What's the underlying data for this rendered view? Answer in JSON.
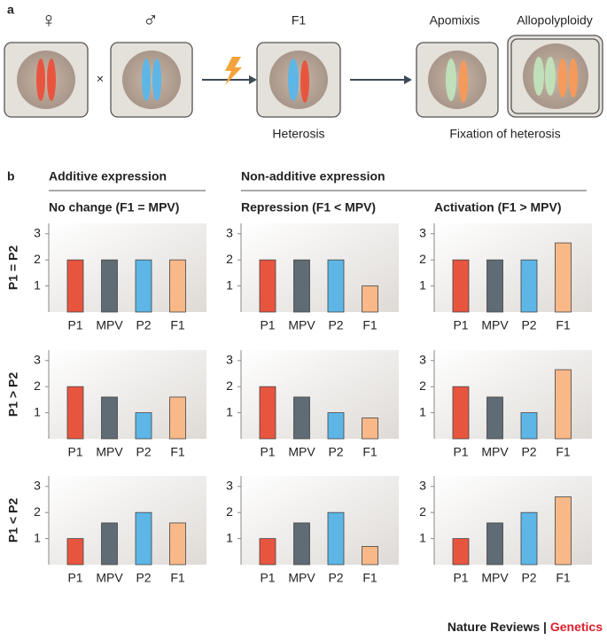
{
  "panel_a": {
    "label": "a",
    "female": "♀",
    "male": "♂",
    "cross": "×",
    "f1": "F1",
    "apomixis": "Apomixis",
    "allopolyploidy": "Allopolyploidy",
    "heterosis": "Heterosis",
    "fixation": "Fixation of heterosis"
  },
  "panel_b": {
    "label": "b",
    "additive": "Additive expression",
    "non_additive": "Non-additive expression",
    "columns": [
      "No change (F1 = MPV)",
      "Repression (F1 < MPV)",
      "Activation (F1 > MPV)"
    ],
    "rows": [
      "P1 = P2",
      "P1 > P2",
      "P1 < P2"
    ]
  },
  "footer": {
    "journal": "Nature Reviews",
    "separator": "|",
    "section": "Genetics"
  },
  "chart_data": [
    {
      "type": "bar",
      "categories": [
        "P1",
        "MPV",
        "P2",
        "F1"
      ],
      "values": [
        2,
        2,
        2,
        2
      ],
      "colors": [
        "#e8553f",
        "#5f6b75",
        "#5db6e6",
        "#f8b888"
      ],
      "ylim": [
        0,
        3.4
      ],
      "yticks": [
        1,
        2,
        3
      ]
    },
    {
      "type": "bar",
      "categories": [
        "P1",
        "MPV",
        "P2",
        "F1"
      ],
      "values": [
        2,
        2,
        2,
        1
      ],
      "colors": [
        "#e8553f",
        "#5f6b75",
        "#5db6e6",
        "#f8b888"
      ],
      "ylim": [
        0,
        3.4
      ],
      "yticks": [
        1,
        2,
        3
      ]
    },
    {
      "type": "bar",
      "categories": [
        "P1",
        "MPV",
        "P2",
        "F1"
      ],
      "values": [
        2,
        2,
        2,
        2.65
      ],
      "colors": [
        "#e8553f",
        "#5f6b75",
        "#5db6e6",
        "#f8b888"
      ],
      "ylim": [
        0,
        3.4
      ],
      "yticks": [
        1,
        2,
        3
      ]
    },
    {
      "type": "bar",
      "categories": [
        "P1",
        "MPV",
        "P2",
        "F1"
      ],
      "values": [
        2,
        1.6,
        1,
        1.6
      ],
      "colors": [
        "#e8553f",
        "#5f6b75",
        "#5db6e6",
        "#f8b888"
      ],
      "ylim": [
        0,
        3.4
      ],
      "yticks": [
        1,
        2,
        3
      ]
    },
    {
      "type": "bar",
      "categories": [
        "P1",
        "MPV",
        "P2",
        "F1"
      ],
      "values": [
        2,
        1.6,
        1,
        0.8
      ],
      "colors": [
        "#e8553f",
        "#5f6b75",
        "#5db6e6",
        "#f8b888"
      ],
      "ylim": [
        0,
        3.4
      ],
      "yticks": [
        1,
        2,
        3
      ]
    },
    {
      "type": "bar",
      "categories": [
        "P1",
        "MPV",
        "P2",
        "F1"
      ],
      "values": [
        2,
        1.6,
        1,
        2.65
      ],
      "colors": [
        "#e8553f",
        "#5f6b75",
        "#5db6e6",
        "#f8b888"
      ],
      "ylim": [
        0,
        3.4
      ],
      "yticks": [
        1,
        2,
        3
      ]
    },
    {
      "type": "bar",
      "categories": [
        "P1",
        "MPV",
        "P2",
        "F1"
      ],
      "values": [
        1,
        1.6,
        2,
        1.6
      ],
      "colors": [
        "#e8553f",
        "#5f6b75",
        "#5db6e6",
        "#f8b888"
      ],
      "ylim": [
        0,
        3.4
      ],
      "yticks": [
        1,
        2,
        3
      ]
    },
    {
      "type": "bar",
      "categories": [
        "P1",
        "MPV",
        "P2",
        "F1"
      ],
      "values": [
        1,
        1.6,
        2,
        0.7
      ],
      "colors": [
        "#e8553f",
        "#5f6b75",
        "#5db6e6",
        "#f8b888"
      ],
      "ylim": [
        0,
        3.4
      ],
      "yticks": [
        1,
        2,
        3
      ]
    },
    {
      "type": "bar",
      "categories": [
        "P1",
        "MPV",
        "P2",
        "F1"
      ],
      "values": [
        1,
        1.6,
        2,
        2.6
      ],
      "colors": [
        "#e8553f",
        "#5f6b75",
        "#5db6e6",
        "#f8b888"
      ],
      "ylim": [
        0,
        3.4
      ],
      "yticks": [
        1,
        2,
        3
      ]
    }
  ]
}
